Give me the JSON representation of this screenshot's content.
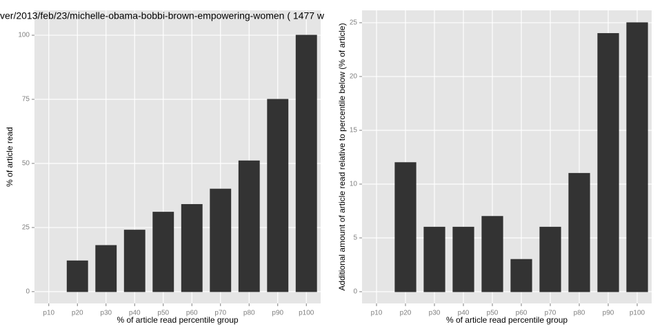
{
  "chart_data": [
    {
      "type": "bar",
      "title": "ver/2013/feb/23/michelle-obama-bobbi-brown-empowering-women ( 1477 w",
      "x_label": "% of article read percentile group",
      "y_label": "% of article read",
      "categories": [
        "p10",
        "p20",
        "p30",
        "p40",
        "p50",
        "p60",
        "p70",
        "p80",
        "p90",
        "p100"
      ],
      "values": [
        0,
        12,
        18,
        24,
        31,
        34,
        40,
        51,
        75,
        100
      ],
      "color": "#333333",
      "ylim": [
        -4.6,
        109.7
      ],
      "yticks": [
        0,
        25,
        50,
        75,
        100
      ],
      "grid": true
    },
    {
      "type": "bar",
      "x_label": "% of article read percentile group",
      "y_label": "Additional amount of article read relative to percentile below (% of article)",
      "categories": [
        "p10",
        "p20",
        "p30",
        "p40",
        "p50",
        "p60",
        "p70",
        "p80",
        "p90",
        "p100"
      ],
      "values": [
        0,
        12,
        6,
        6,
        7,
        3,
        6,
        11,
        24,
        25
      ],
      "color": "#333333",
      "ylim": [
        -1.09,
        26.15
      ],
      "yticks": [
        0,
        5,
        10,
        15,
        20,
        25
      ],
      "grid": true
    }
  ]
}
